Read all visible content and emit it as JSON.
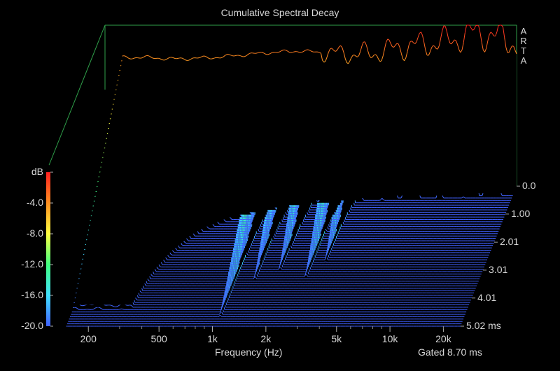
{
  "chart_data": {
    "type": "waterfall",
    "title": "Cumulative Spectral Decay",
    "watermark": [
      "A",
      "R",
      "T",
      "A"
    ],
    "xlabel": "Frequency (Hz)",
    "x_scale": "log",
    "x_ticks": [
      {
        "value": 200,
        "label": "200"
      },
      {
        "value": 500,
        "label": "500"
      },
      {
        "value": 1000,
        "label": "1k"
      },
      {
        "value": 2000,
        "label": "2k"
      },
      {
        "value": 5000,
        "label": "5k"
      },
      {
        "value": 10000,
        "label": "10k"
      },
      {
        "value": 20000,
        "label": "20k"
      }
    ],
    "xlim": [
      120,
      25000
    ],
    "zlabel": "dB",
    "zlim": [
      -20,
      0
    ],
    "z_ticks": [
      {
        "value": 0,
        "label": "dB"
      },
      {
        "value": -4,
        "label": "-4.0"
      },
      {
        "value": -8,
        "label": "-8.0"
      },
      {
        "value": -12,
        "label": "-12.0"
      },
      {
        "value": -16,
        "label": "-16.0"
      },
      {
        "value": -20,
        "label": "-20.0"
      }
    ],
    "time_unit": "ms",
    "tlim": [
      0,
      5.02
    ],
    "t_ticks": [
      {
        "value": 0,
        "label": "0.0"
      },
      {
        "value": 1.0,
        "label": "1.00"
      },
      {
        "value": 2.01,
        "label": "2.01"
      },
      {
        "value": 3.01,
        "label": "3.01"
      },
      {
        "value": 4.01,
        "label": "4.01"
      },
      {
        "value": 5.02,
        "label": "5.02 ms"
      }
    ],
    "gate_label": "Gated 8.70 ms",
    "colorbar": [
      "#ff2020",
      "#ff9020",
      "#ffff40",
      "#40ff80",
      "#40e0ff",
      "#4060ff"
    ],
    "slices": 60,
    "initial_response": [
      {
        "f": 150,
        "db": -4.0
      },
      {
        "f": 200,
        "db": -4.0
      },
      {
        "f": 300,
        "db": -4.2
      },
      {
        "f": 500,
        "db": -4.0
      },
      {
        "f": 800,
        "db": -3.6
      },
      {
        "f": 1000,
        "db": -3.4
      },
      {
        "f": 1500,
        "db": -3.2
      },
      {
        "f": 2000,
        "db": -3.4
      },
      {
        "f": 3000,
        "db": -3.6
      },
      {
        "f": 4000,
        "db": -3.4
      },
      {
        "f": 6000,
        "db": -2.6
      },
      {
        "f": 8000,
        "db": -2.3
      },
      {
        "f": 10000,
        "db": -2.0
      },
      {
        "f": 15000,
        "db": -0.9
      },
      {
        "f": 20000,
        "db": -1.5
      },
      {
        "f": 25000,
        "db": -2.2
      }
    ]
  }
}
